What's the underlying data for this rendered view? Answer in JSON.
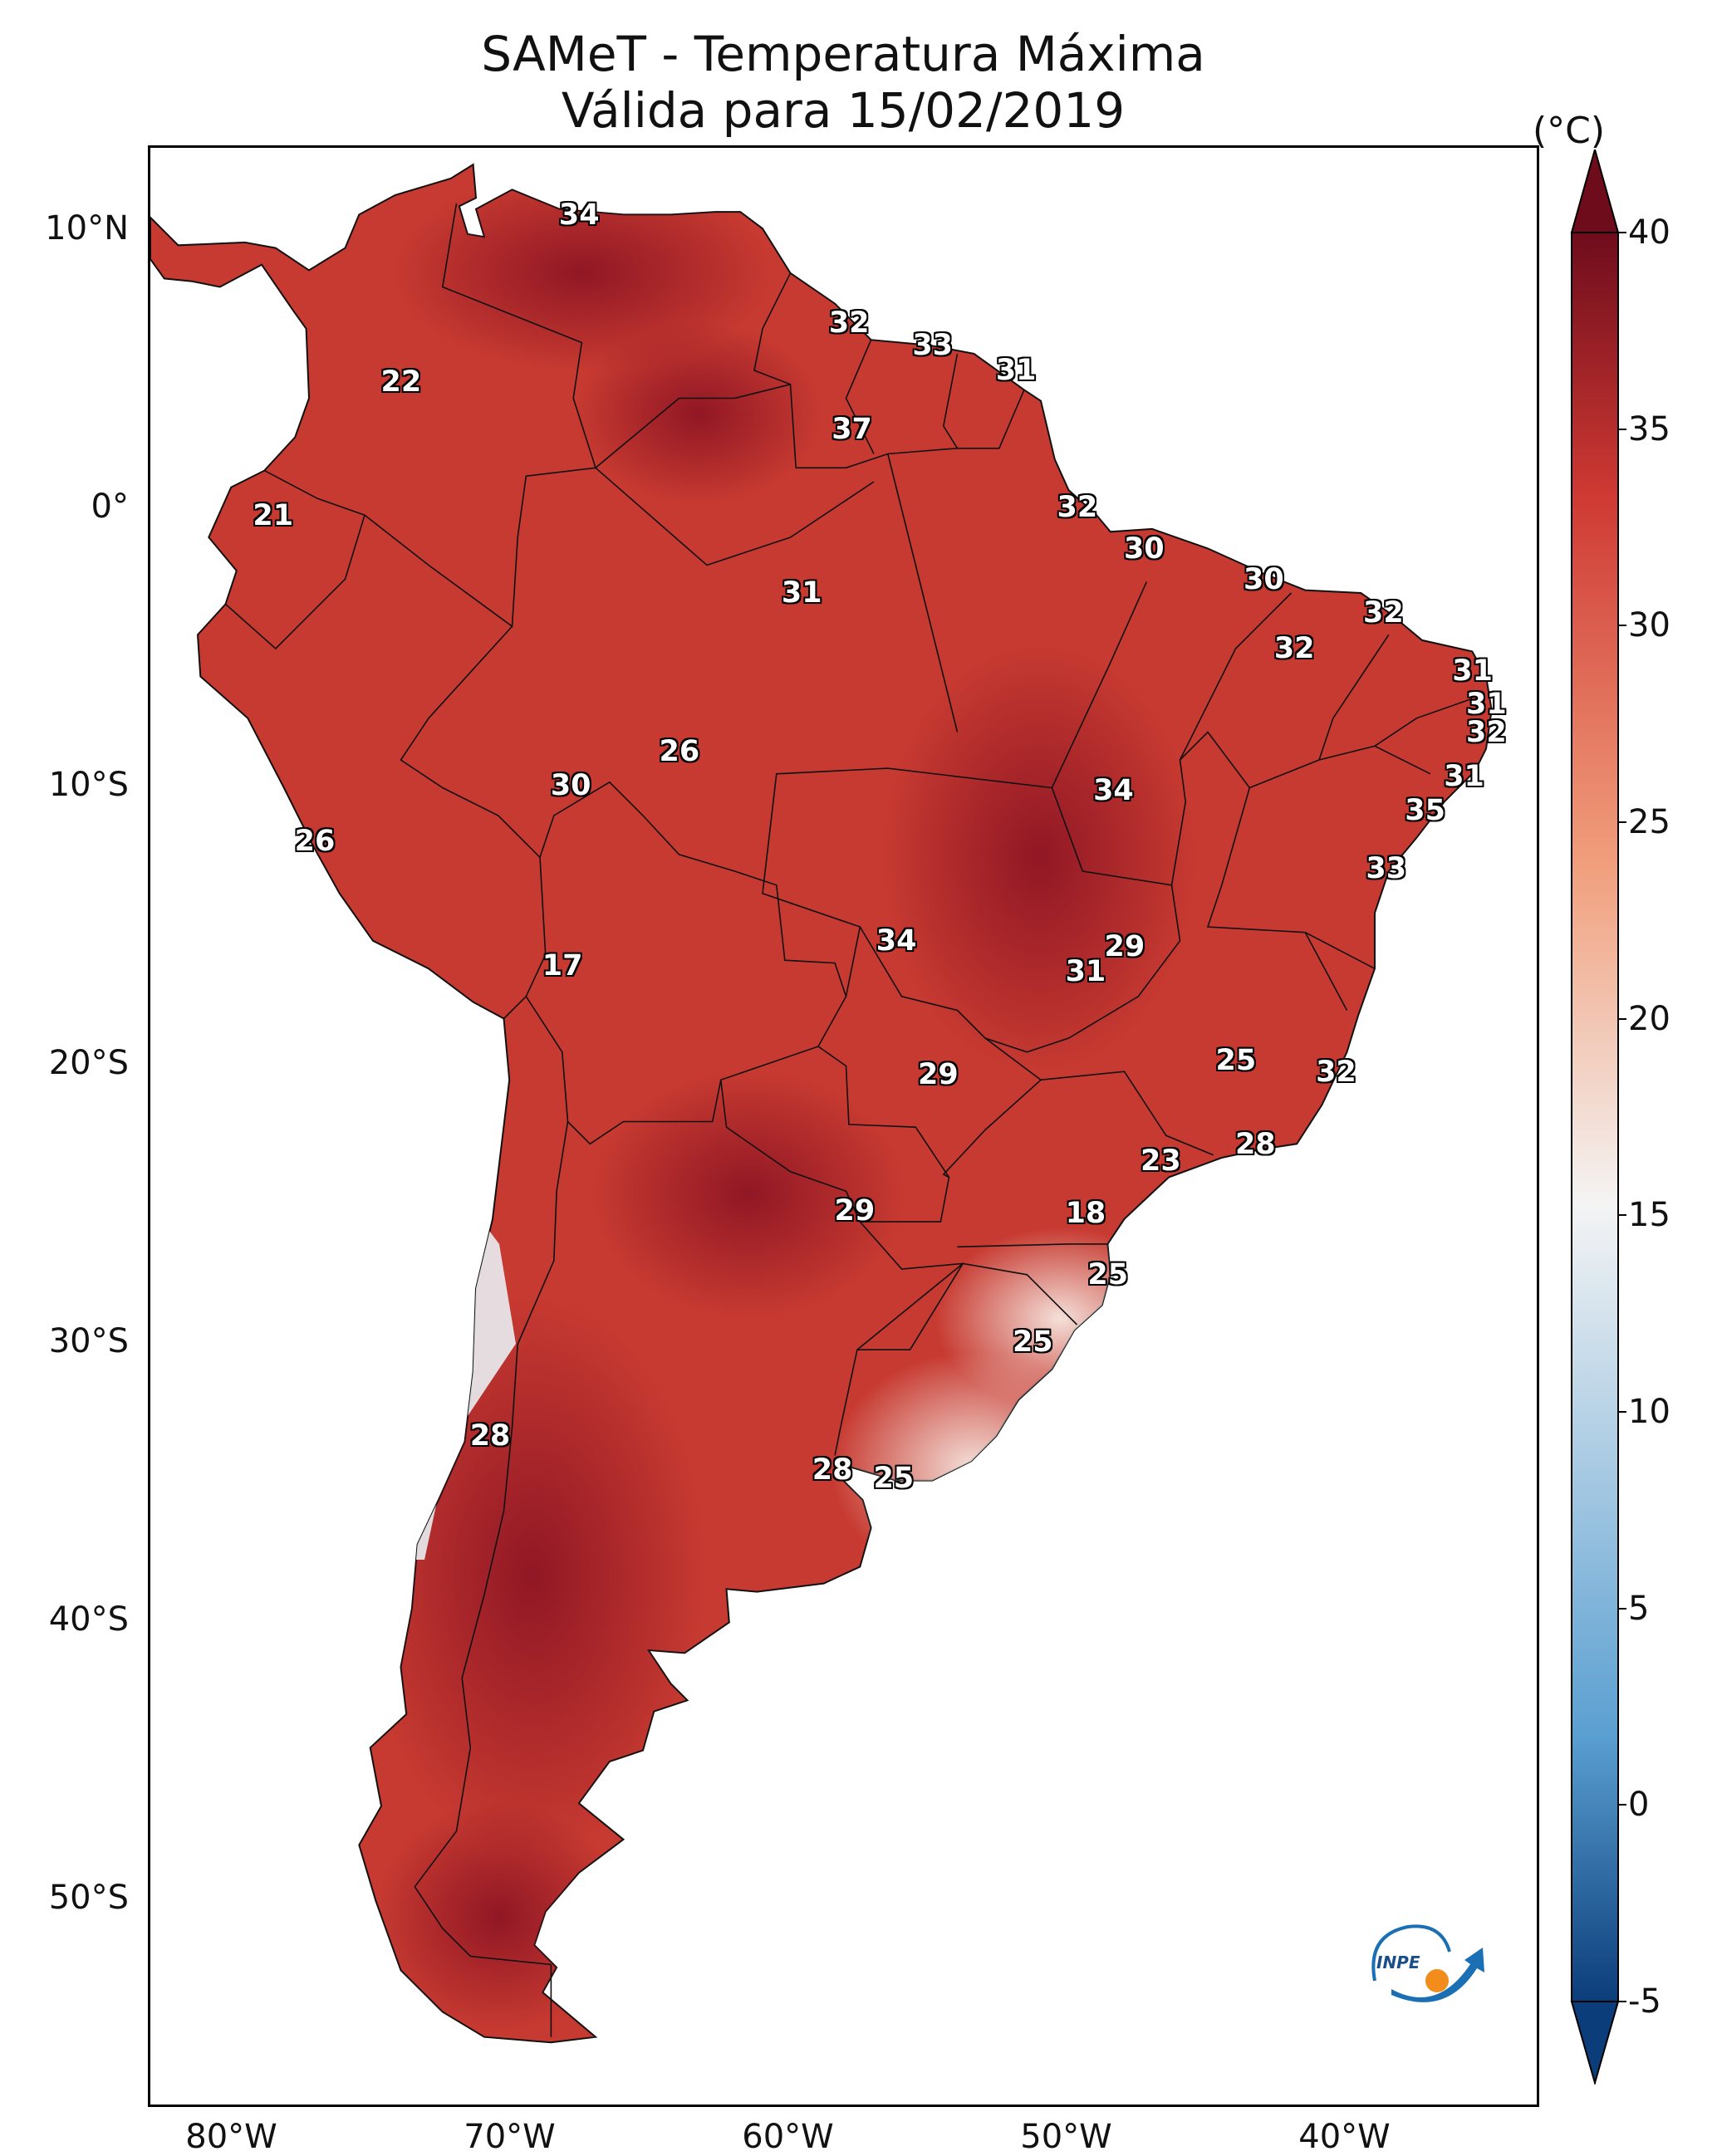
{
  "title": {
    "line1": "SAMeT - Temperatura Máxima",
    "line2": "Válida para 15/02/2019"
  },
  "axes": {
    "lat_ticks": [
      "10°N",
      "0°",
      "10°S",
      "20°S",
      "30°S",
      "40°S",
      "50°S"
    ],
    "lon_ticks": [
      "80°W",
      "70°W",
      "60°W",
      "50°W",
      "40°W"
    ]
  },
  "colorbar": {
    "unit": "(°C)",
    "ticks": [
      "-5",
      "0",
      "5",
      "10",
      "15",
      "20",
      "25",
      "30",
      "35",
      "40"
    ],
    "min": -5,
    "max": 40,
    "colors": {
      "cold": "#0b3d7a",
      "cool": "#5a9fd1",
      "neutral": "#f4f4f4",
      "warm": "#f1a07e",
      "hot": "#cf3a33",
      "hottest": "#6e0c1c"
    }
  },
  "stations": [
    {
      "value": "34",
      "lon": -67.5,
      "lat": 10.5
    },
    {
      "value": "32",
      "lon": -57.8,
      "lat": 6.6
    },
    {
      "value": "33",
      "lon": -54.8,
      "lat": 5.8
    },
    {
      "value": "31",
      "lon": -51.8,
      "lat": 4.9
    },
    {
      "value": "22",
      "lon": -73.9,
      "lat": 4.5
    },
    {
      "value": "37",
      "lon": -57.7,
      "lat": 2.8
    },
    {
      "value": "21",
      "lon": -78.5,
      "lat": -0.3
    },
    {
      "value": "32",
      "lon": -49.6,
      "lat": 0.0
    },
    {
      "value": "30",
      "lon": -47.2,
      "lat": -1.5
    },
    {
      "value": "30",
      "lon": -42.9,
      "lat": -2.6
    },
    {
      "value": "31",
      "lon": -59.5,
      "lat": -3.1
    },
    {
      "value": "32",
      "lon": -38.6,
      "lat": -3.8
    },
    {
      "value": "32",
      "lon": -41.8,
      "lat": -5.1
    },
    {
      "value": "31",
      "lon": -35.4,
      "lat": -5.9
    },
    {
      "value": "31",
      "lon": -34.9,
      "lat": -7.1
    },
    {
      "value": "32",
      "lon": -34.9,
      "lat": -8.1
    },
    {
      "value": "26",
      "lon": -63.9,
      "lat": -8.8
    },
    {
      "value": "31",
      "lon": -35.7,
      "lat": -9.7
    },
    {
      "value": "30",
      "lon": -67.8,
      "lat": -10.0
    },
    {
      "value": "34",
      "lon": -48.3,
      "lat": -10.2
    },
    {
      "value": "35",
      "lon": -37.1,
      "lat": -10.9
    },
    {
      "value": "26",
      "lon": -77.0,
      "lat": -12.0
    },
    {
      "value": "33",
      "lon": -38.5,
      "lat": -13.0
    },
    {
      "value": "29",
      "lon": -47.9,
      "lat": -15.8
    },
    {
      "value": "34",
      "lon": -56.1,
      "lat": -15.6
    },
    {
      "value": "31",
      "lon": -49.3,
      "lat": -16.7
    },
    {
      "value": "17",
      "lon": -68.1,
      "lat": -16.5
    },
    {
      "value": "25",
      "lon": -43.9,
      "lat": -19.9
    },
    {
      "value": "32",
      "lon": -40.3,
      "lat": -20.3
    },
    {
      "value": "29",
      "lon": -54.6,
      "lat": -20.4
    },
    {
      "value": "28",
      "lon": -43.2,
      "lat": -22.9
    },
    {
      "value": "23",
      "lon": -46.6,
      "lat": -23.5
    },
    {
      "value": "29",
      "lon": -57.6,
      "lat": -25.3
    },
    {
      "value": "18",
      "lon": -49.3,
      "lat": -25.4
    },
    {
      "value": "25",
      "lon": -48.5,
      "lat": -27.6
    },
    {
      "value": "25",
      "lon": -51.2,
      "lat": -30.0
    },
    {
      "value": "28",
      "lon": -70.7,
      "lat": -33.4
    },
    {
      "value": "28",
      "lon": -58.4,
      "lat": -34.6
    },
    {
      "value": "25",
      "lon": -56.2,
      "lat": -34.9
    }
  ]
}
